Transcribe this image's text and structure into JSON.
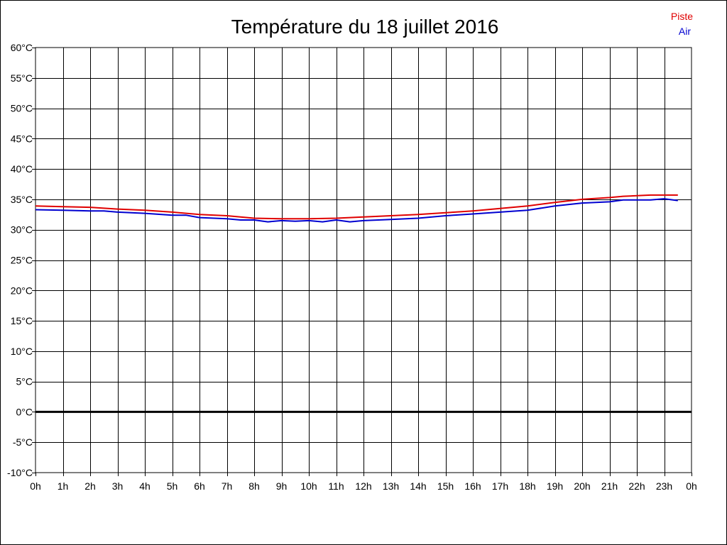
{
  "chart_data": {
    "type": "line",
    "title": "Température du 18 juillet 2016",
    "xlabel": "",
    "ylabel": "",
    "x_ticks": [
      "0h",
      "1h",
      "2h",
      "3h",
      "4h",
      "5h",
      "6h",
      "7h",
      "8h",
      "9h",
      "10h",
      "11h",
      "12h",
      "13h",
      "14h",
      "15h",
      "16h",
      "17h",
      "18h",
      "19h",
      "20h",
      "21h",
      "22h",
      "23h",
      "0h"
    ],
    "y_ticks": [
      "60°C",
      "55°C",
      "50°C",
      "45°C",
      "40°C",
      "35°C",
      "30°C",
      "25°C",
      "20°C",
      "15°C",
      "10°C",
      "5°C",
      "0°C",
      "-5°C",
      "-10°C"
    ],
    "xlim": [
      0,
      24
    ],
    "ylim": [
      -10,
      60
    ],
    "grid": true,
    "legend_position": "top-right",
    "zero_line": true,
    "series": [
      {
        "name": "Piste",
        "color": "#e00000",
        "x": [
          0,
          1,
          2,
          3,
          4,
          5,
          6,
          7,
          8,
          9,
          10,
          11,
          12,
          13,
          14,
          15,
          16,
          17,
          18,
          19,
          20,
          21,
          21.5,
          22,
          22.5,
          23,
          23.5
        ],
        "values": [
          33.9,
          33.8,
          33.7,
          33.4,
          33.2,
          32.9,
          32.5,
          32.3,
          31.9,
          31.8,
          31.8,
          31.9,
          32.1,
          32.3,
          32.5,
          32.8,
          33.1,
          33.5,
          33.9,
          34.5,
          35.0,
          35.3,
          35.5,
          35.6,
          35.7,
          35.7,
          35.7
        ]
      },
      {
        "name": "Air",
        "color": "#0000d0",
        "x": [
          0,
          1,
          2,
          2.5,
          3,
          4,
          5,
          5.5,
          6,
          7,
          7.5,
          8,
          8.5,
          9,
          9.5,
          10,
          10.5,
          11,
          11.5,
          12,
          13,
          14,
          15,
          16,
          17,
          18,
          19,
          20,
          21,
          21.5,
          22,
          22.5,
          23,
          23.5
        ],
        "values": [
          33.3,
          33.2,
          33.1,
          33.1,
          32.9,
          32.7,
          32.4,
          32.4,
          32.0,
          31.8,
          31.6,
          31.6,
          31.3,
          31.5,
          31.4,
          31.5,
          31.3,
          31.6,
          31.3,
          31.5,
          31.7,
          31.9,
          32.3,
          32.6,
          32.9,
          33.2,
          33.9,
          34.4,
          34.6,
          34.9,
          34.9,
          34.9,
          35.1,
          34.8
        ]
      }
    ]
  }
}
